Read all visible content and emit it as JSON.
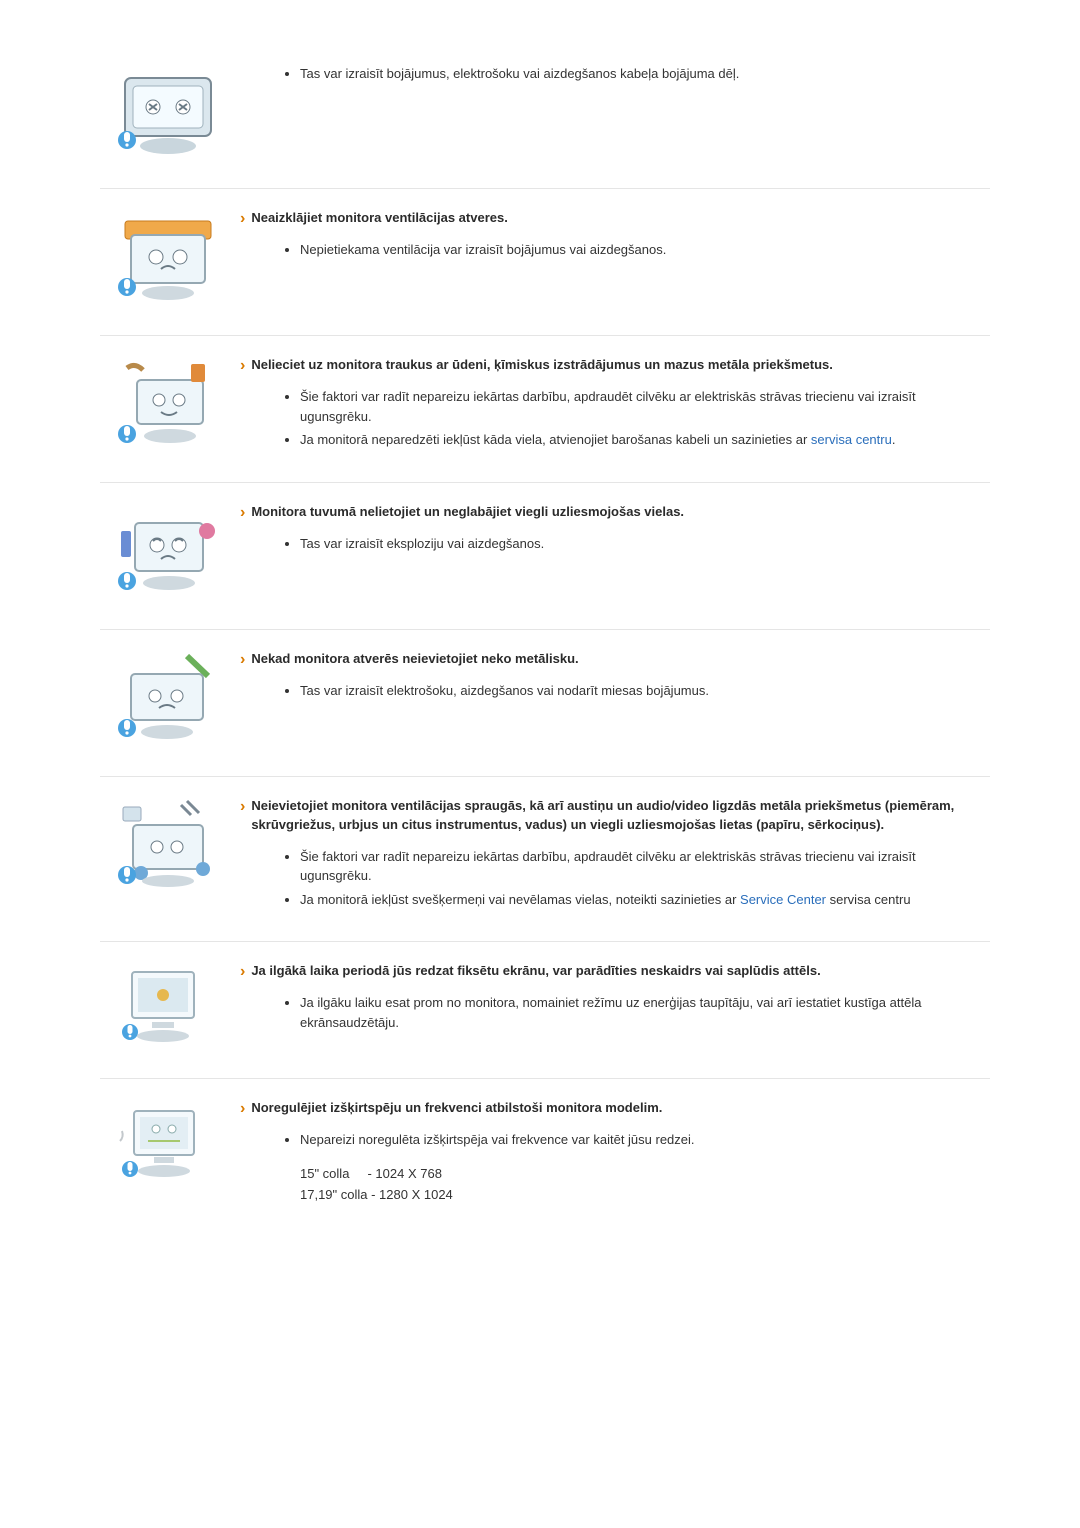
{
  "link_color": "#2a6ebb",
  "sections": [
    {
      "heading": "",
      "bullets": [
        "Tas var izraisīt bojājumus, elektrošoku vai aizdegšanos kabeļa bojājuma dēļ."
      ]
    },
    {
      "heading": "Neaizklājiet monitora ventilācijas atveres.",
      "bullets": [
        "Nepietiekama ventilācija var izraisīt bojājumus vai aizdegšanos."
      ]
    },
    {
      "heading": "Nelieciet uz monitora traukus ar ūdeni, ķīmiskus izstrādājumus un mazus metāla priekšmetus.",
      "bullets": [
        "Šie faktori var radīt nepareizu iekārtas darbību, apdraudēt cilvēku ar elektriskās strāvas triecienu vai izraisīt ugunsgrēku.",
        "Ja monitorā neparedzēti iekļūst kāda viela, atvienojiet barošanas kabeli un sazinieties ar <a href='#'>servisa centru</a>."
      ]
    },
    {
      "heading": "Monitora tuvumā nelietojiet un neglabājiet viegli uzliesmojošas vielas.",
      "bullets": [
        "Tas var izraisīt eksploziju vai aizdegšanos."
      ]
    },
    {
      "heading": "Nekad monitora atverēs neievietojiet neko metālisku.",
      "bullets": [
        "Tas var izraisīt elektrošoku, aizdegšanos vai nodarīt miesas bojājumus."
      ]
    },
    {
      "heading": "Neievietojiet monitora ventilācijas spraugās, kā arī austiņu un audio/video ligzdās metāla priekšmetus (piemēram, skrūvgriežus, urbjus un citus instrumentus, vadus) un viegli uzliesmojošas lietas (papīru, sērkociņus).",
      "bullets": [
        "Šie faktori var radīt nepareizu iekārtas darbību, apdraudēt cilvēku ar elektriskās strāvas triecienu vai izraisīt ugunsgrēku.",
        "Ja monitorā iekļūst svešķermeņi vai nevēlamas vielas, noteikti sazinieties ar <a href='#'>Service Center</a> servisa centru"
      ]
    },
    {
      "heading": "Ja ilgākā laika periodā jūs redzat fiksētu ekrānu, var parādīties neskaidrs vai saplūdis attēls.",
      "bullets": [
        "Ja ilgāku laiku esat prom no monitora, nomainiet režīmu uz enerģijas taupītāju, vai arī iestatiet kustīga attēla ekrānsaudzētāju."
      ]
    },
    {
      "heading": "Noregulējiet izšķirtspēju un frekvenci atbilstoši monitora modelim.",
      "bullets": [
        "Nepareizi noregulēta izšķirtspēja vai frekvence var kaitēt jūsu redzei."
      ],
      "extra": [
        "15\" colla     - 1024 X 768",
        "17,19\" colla - 1280 X 1024"
      ]
    }
  ]
}
